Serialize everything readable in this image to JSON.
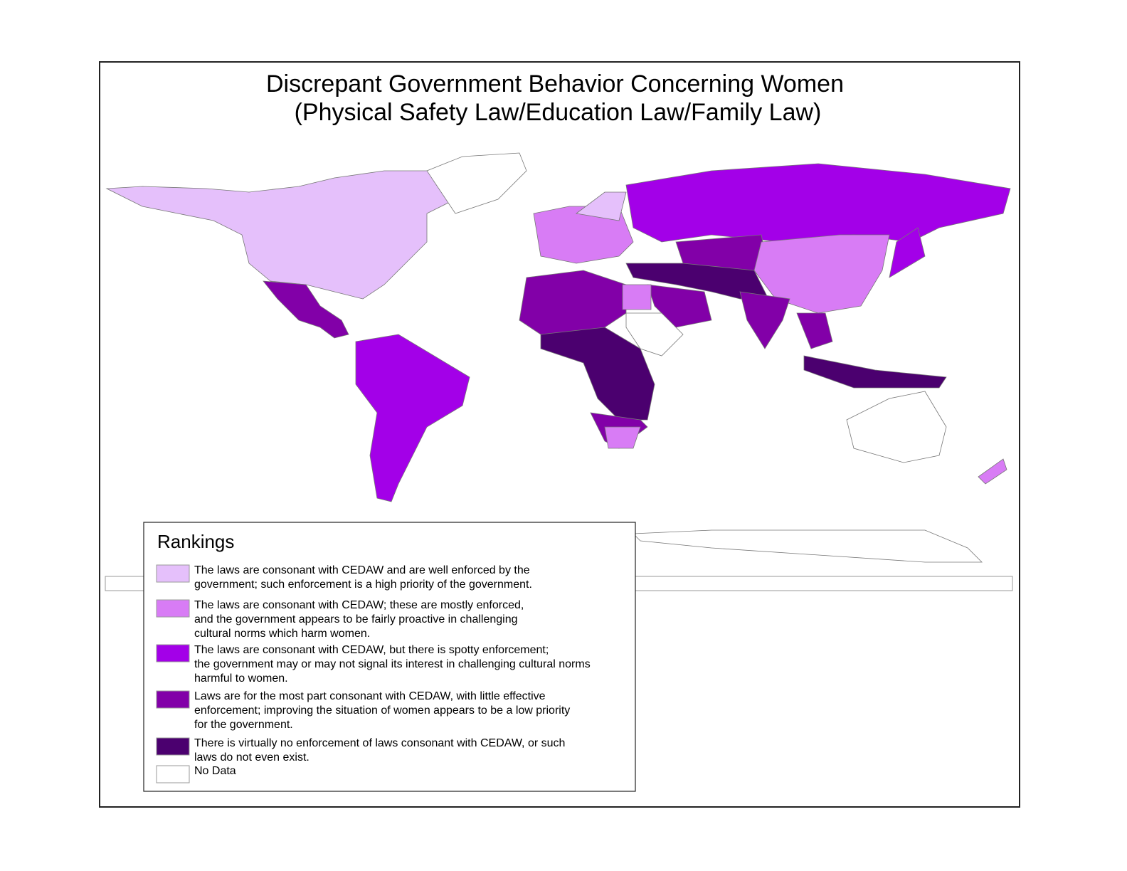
{
  "title": [
    "Discrepant Government Behavior Concerning Women",
    "(Physical Safety Law/Education Law/Family Law)"
  ],
  "legend": {
    "title": "Rankings",
    "items": [
      {
        "label": [
          "The laws are consonant with CEDAW and are well enforced by the",
          "government; such enforcement is a high priority of the government."
        ],
        "color": "#e5c0fb"
      },
      {
        "label": [
          "The laws are consonant with CEDAW; these are mostly enforced,",
          "and the government appears to be fairly proactive in challenging",
          "cultural norms which harm women."
        ],
        "color": "#d87cf5"
      },
      {
        "label": [
          "The laws are consonant with CEDAW, but there is spotty enforcement;",
          "the government may or may not signal its interest in challenging cultural norms",
          "harmful to women."
        ],
        "color": "#a300e8"
      },
      {
        "label": [
          "Laws are for the most part consonant with CEDAW, with little effective",
          "enforcement; improving the situation of women appears to be a low priority",
          "for the government."
        ],
        "color": "#8200a8"
      },
      {
        "label": [
          "There is virtually no enforcement of laws consonant with CEDAW, or such",
          "laws do not even exist."
        ],
        "color": "#4b006f"
      },
      {
        "label": [
          "No Data"
        ],
        "color": "#ffffff"
      }
    ]
  }
}
